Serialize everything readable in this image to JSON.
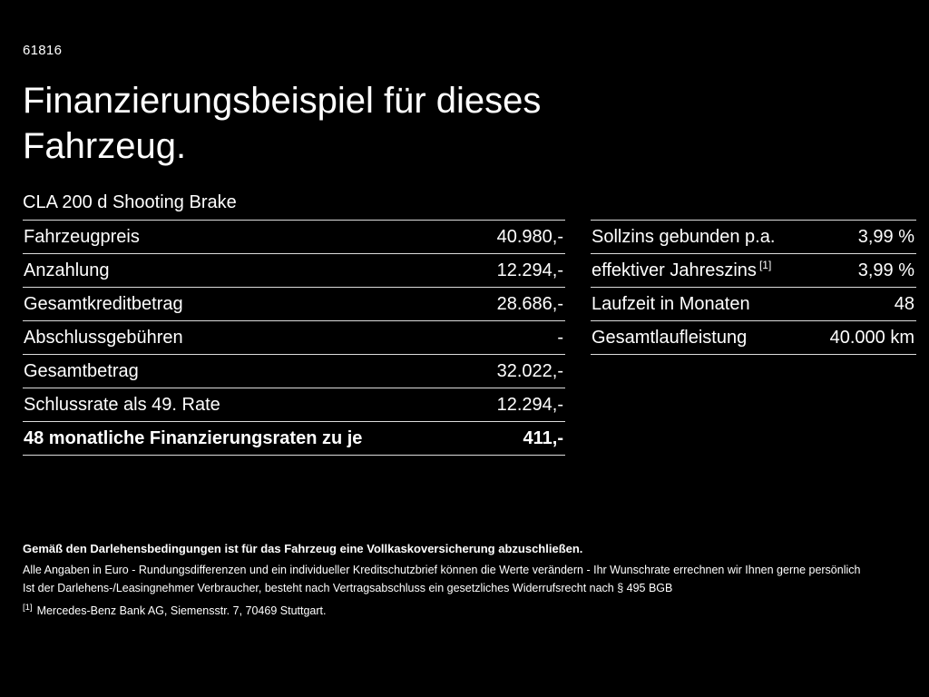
{
  "page": {
    "ref_number": "61816",
    "title_line1": "Finanzierungsbeispiel für dieses",
    "title_line2": "Fahrzeug.",
    "vehicle_model": "CLA 200 d Shooting Brake"
  },
  "colors": {
    "background": "#000000",
    "text": "#ffffff",
    "divider": "#dcdcdc"
  },
  "finance_table": {
    "rows": [
      {
        "label": "Fahrzeugpreis",
        "value": "40.980,-"
      },
      {
        "label": "Anzahlung",
        "value": "12.294,-"
      },
      {
        "label": "Gesamtkreditbetrag",
        "value": "28.686,-"
      },
      {
        "label": "Abschlussgebühren",
        "value": "-"
      },
      {
        "label": "Gesamtbetrag",
        "value": "32.022,-"
      },
      {
        "label": "Schlussrate als 49. Rate",
        "value": "12.294,-"
      },
      {
        "label": "48 monatliche Finanzierungsraten zu je",
        "value": "411,-"
      }
    ]
  },
  "conditions_table": {
    "rows": [
      {
        "label": "Sollzins gebunden p.a.",
        "value": "3,99 %"
      },
      {
        "label": "effektiver Jahreszins",
        "sup": "[1]",
        "value": "3,99 %"
      },
      {
        "label": "Laufzeit in Monaten",
        "value": "48"
      },
      {
        "label": "Gesamtlaufleistung",
        "value": "40.000 km"
      }
    ]
  },
  "footnotes": {
    "insurance_note": "Gemäß den Darlehensbedingungen ist für das Fahrzeug eine Vollkaskoversicherung abzuschließen.",
    "disclaimer_line1": "Alle Angaben in Euro - Rundungsdifferenzen und ein individueller Kreditschutzbrief können die Werte verändern - Ihr Wunschrate errechnen wir Ihnen gerne persönlich",
    "disclaimer_line2": "Ist der Darlehens-/Leasingnehmer Verbraucher, besteht nach Vertragsabschluss ein gesetzliches Widerrufsrecht nach § 495 BGB",
    "ref_marker": "[1]",
    "bank_address": "Mercedes-Benz Bank AG, Siemensstr. 7, 70469 Stuttgart."
  }
}
